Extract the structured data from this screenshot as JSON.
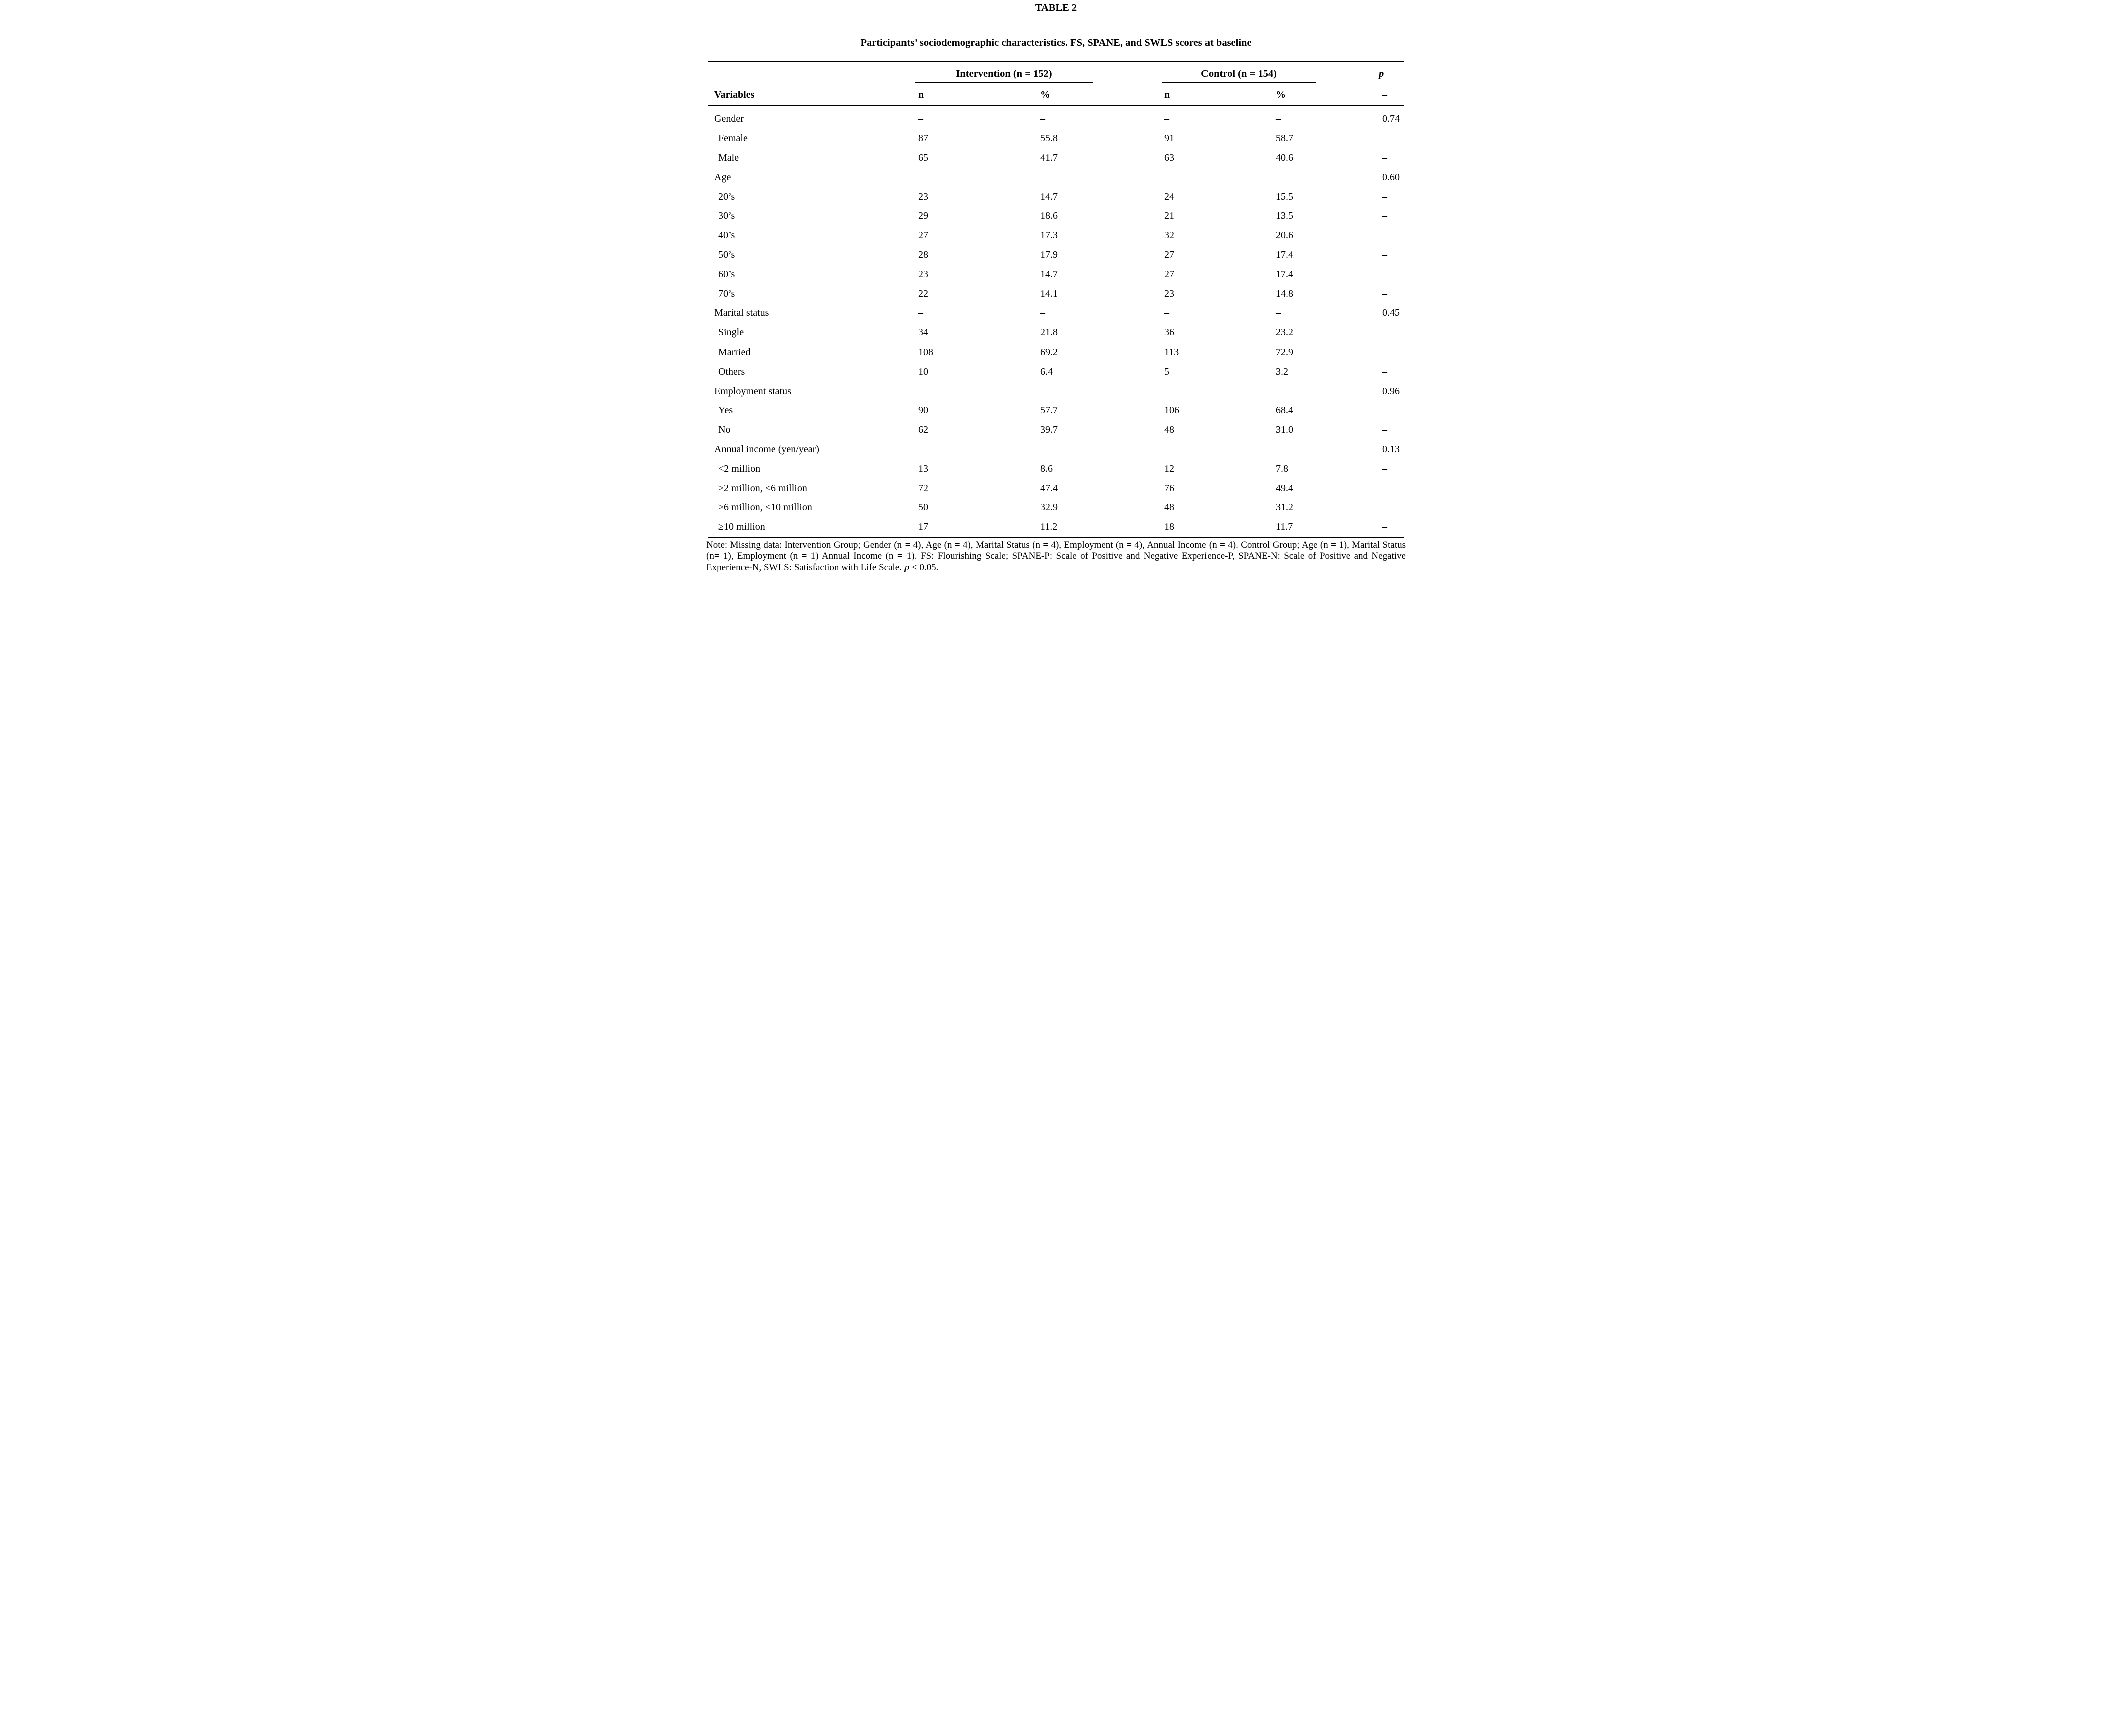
{
  "table_label": "TABLE 2",
  "table_title": "Participants’ sociodemographic characteristics. FS, SPANE, and SWLS scores at baseline",
  "header": {
    "group1": "Intervention (n = 152)",
    "group2": "Control (n = 154)",
    "p": "p",
    "col_variables": "Variables",
    "col_n": "n",
    "col_pct": "%",
    "col_n2": "n",
    "col_pct2": "%",
    "col_p_dash": "–"
  },
  "rows": [
    {
      "label": "Gender",
      "indent": false,
      "n1": "–",
      "pct1": "–",
      "n2": "–",
      "pct2": "–",
      "p": "0.74"
    },
    {
      "label": "Female",
      "indent": true,
      "n1": "87",
      "pct1": "55.8",
      "n2": "91",
      "pct2": "58.7",
      "p": "–"
    },
    {
      "label": "Male",
      "indent": true,
      "n1": "65",
      "pct1": "41.7",
      "n2": "63",
      "pct2": "40.6",
      "p": "–"
    },
    {
      "label": "Age",
      "indent": false,
      "n1": "–",
      "pct1": "–",
      "n2": "–",
      "pct2": "–",
      "p": "0.60"
    },
    {
      "label": "20’s",
      "indent": true,
      "n1": "23",
      "pct1": "14.7",
      "n2": "24",
      "pct2": "15.5",
      "p": "–"
    },
    {
      "label": "30’s",
      "indent": true,
      "n1": "29",
      "pct1": "18.6",
      "n2": "21",
      "pct2": "13.5",
      "p": "–"
    },
    {
      "label": "40’s",
      "indent": true,
      "n1": "27",
      "pct1": "17.3",
      "n2": "32",
      "pct2": "20.6",
      "p": "–"
    },
    {
      "label": "50’s",
      "indent": true,
      "n1": "28",
      "pct1": "17.9",
      "n2": "27",
      "pct2": "17.4",
      "p": "–"
    },
    {
      "label": "60’s",
      "indent": true,
      "n1": "23",
      "pct1": "14.7",
      "n2": "27",
      "pct2": "17.4",
      "p": "–"
    },
    {
      "label": "70’s",
      "indent": true,
      "n1": "22",
      "pct1": "14.1",
      "n2": "23",
      "pct2": "14.8",
      "p": "–"
    },
    {
      "label": "Marital status",
      "indent": false,
      "n1": "–",
      "pct1": "–",
      "n2": "–",
      "pct2": "–",
      "p": "0.45"
    },
    {
      "label": "Single",
      "indent": true,
      "n1": "34",
      "pct1": "21.8",
      "n2": "36",
      "pct2": "23.2",
      "p": "–"
    },
    {
      "label": "Married",
      "indent": true,
      "n1": "108",
      "pct1": "69.2",
      "n2": "113",
      "pct2": "72.9",
      "p": "–"
    },
    {
      "label": "Others",
      "indent": true,
      "n1": "10",
      "pct1": "6.4",
      "n2": "5",
      "pct2": "3.2",
      "p": "–"
    },
    {
      "label": "Employment status",
      "indent": false,
      "n1": "–",
      "pct1": "–",
      "n2": "–",
      "pct2": "–",
      "p": "0.96"
    },
    {
      "label": "Yes",
      "indent": true,
      "n1": "90",
      "pct1": "57.7",
      "n2": "106",
      "pct2": "68.4",
      "p": "–"
    },
    {
      "label": "No",
      "indent": true,
      "n1": "62",
      "pct1": "39.7",
      "n2": "48",
      "pct2": "31.0",
      "p": "–"
    },
    {
      "label": "Annual income (yen/year)",
      "indent": false,
      "n1": "–",
      "pct1": "–",
      "n2": "–",
      "pct2": "–",
      "p": "0.13"
    },
    {
      "label": "<2 million",
      "indent": true,
      "n1": "13",
      "pct1": "8.6",
      "n2": "12",
      "pct2": "7.8",
      "p": "–"
    },
    {
      "label": "≥2 million, <6 million",
      "indent": true,
      "n1": "72",
      "pct1": "47.4",
      "n2": "76",
      "pct2": "49.4",
      "p": "–"
    },
    {
      "label": "≥6 million, <10 million",
      "indent": true,
      "n1": "50",
      "pct1": "32.9",
      "n2": "48",
      "pct2": "31.2",
      "p": "–"
    },
    {
      "label": "≥10 million",
      "indent": true,
      "n1": "17",
      "pct1": "11.2",
      "n2": "18",
      "pct2": "11.7",
      "p": "–"
    }
  ],
  "note": {
    "before": "Note: Missing data: Intervention Group; Gender (n = 4), Age (n = 4), Marital Status (n = 4), Employment (n = 4), Annual Income (n = 4). Control Group; Age (n = 1), Marital Status (n= 1), Employment (n = 1) Annual Income (n = 1). FS: Flourishing Scale; SPANE-P: Scale of Positive and Negative Experience-P, SPANE-N: Scale of Positive and Negative Experience-N, SWLS: Satisfaction with Life Scale. ",
    "p": "p",
    "after": " < 0.05."
  }
}
